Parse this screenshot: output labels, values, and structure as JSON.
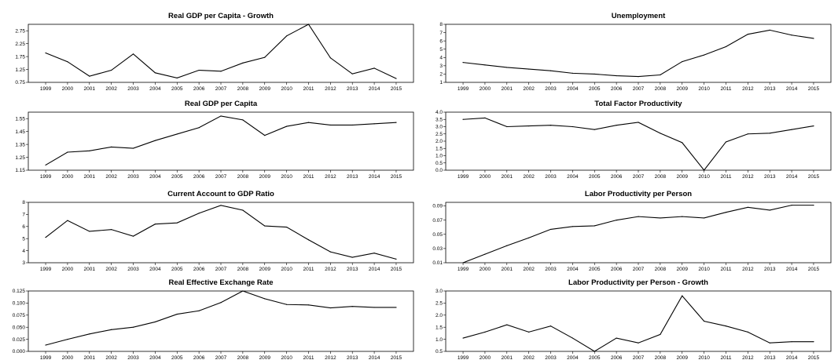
{
  "chart_data": [
    {
      "type": "line",
      "title": "Real GDP per Capita - Growth",
      "categories": [
        "1999",
        "2000",
        "2001",
        "2002",
        "2003",
        "2004",
        "2005",
        "2006",
        "2007",
        "2008",
        "2009",
        "2010",
        "2011",
        "2012",
        "2013",
        "2014",
        "2015"
      ],
      "ylim": [
        0.75,
        3.0
      ],
      "yticks": [
        "0.75",
        "1.25",
        "1.75",
        "2.25",
        "2.75"
      ],
      "series": [
        {
          "values": [
            1.89,
            1.55,
            0.99,
            1.22,
            1.85,
            1.12,
            0.92,
            1.22,
            1.18,
            1.5,
            1.72,
            2.55,
            3.0,
            1.7,
            1.08,
            1.3,
            0.9
          ]
        }
      ]
    },
    {
      "type": "line",
      "title": "Unemployment",
      "categories": [
        "1999",
        "2000",
        "2001",
        "2002",
        "2003",
        "2004",
        "2005",
        "2006",
        "2007",
        "2008",
        "2009",
        "2010",
        "2011",
        "2012",
        "2013",
        "2014",
        "2015"
      ],
      "ylim": [
        1,
        8
      ],
      "yticks": [
        "1",
        "2",
        "3",
        "4",
        "5",
        "6",
        "7",
        "8"
      ],
      "series": [
        {
          "values": [
            3.4,
            3.1,
            2.8,
            2.6,
            2.4,
            2.1,
            2.0,
            1.8,
            1.7,
            1.9,
            3.5,
            4.3,
            5.3,
            6.8,
            7.3,
            6.7,
            6.3
          ]
        }
      ]
    },
    {
      "type": "line",
      "title": "Real GDP per Capita",
      "categories": [
        "1999",
        "2000",
        "2001",
        "2002",
        "2003",
        "2004",
        "2005",
        "2006",
        "2007",
        "2008",
        "2009",
        "2010",
        "2011",
        "2012",
        "2013",
        "2014",
        "2015"
      ],
      "ylim": [
        1.15,
        1.6
      ],
      "yticks": [
        "1.15",
        "1.25",
        "1.35",
        "1.45",
        "1.55"
      ],
      "series": [
        {
          "values": [
            1.19,
            1.29,
            1.3,
            1.33,
            1.32,
            1.38,
            1.43,
            1.48,
            1.57,
            1.54,
            1.42,
            1.49,
            1.52,
            1.5,
            1.5,
            1.51,
            1.52
          ]
        }
      ]
    },
    {
      "type": "line",
      "title": "Total Factor Productivity",
      "categories": [
        "1999",
        "2000",
        "2001",
        "2002",
        "2003",
        "2004",
        "2005",
        "2006",
        "2007",
        "2008",
        "2009",
        "2010",
        "2011",
        "2012",
        "2013",
        "2014",
        "2015"
      ],
      "ylim": [
        0.0,
        4.0
      ],
      "yticks": [
        "0.0",
        "0.5",
        "1.0",
        "1.5",
        "2.0",
        "2.5",
        "3.0",
        "3.5",
        "4.0"
      ],
      "series": [
        {
          "values": [
            3.5,
            3.6,
            3.0,
            3.05,
            3.1,
            3.0,
            2.8,
            3.1,
            3.3,
            2.55,
            1.9,
            0.0,
            1.95,
            2.5,
            2.55,
            2.8,
            3.05
          ]
        }
      ]
    },
    {
      "type": "line",
      "title": "Current Account to GDP Ratio",
      "categories": [
        "1999",
        "2000",
        "2001",
        "2002",
        "2003",
        "2004",
        "2005",
        "2006",
        "2007",
        "2008",
        "2009",
        "2010",
        "2011",
        "2012",
        "2013",
        "2014",
        "2015"
      ],
      "ylim": [
        3,
        8
      ],
      "yticks": [
        "3",
        "4",
        "5",
        "6",
        "7",
        "8"
      ],
      "series": [
        {
          "values": [
            5.1,
            6.5,
            5.6,
            5.75,
            5.2,
            6.2,
            6.3,
            7.1,
            7.75,
            7.35,
            6.05,
            5.95,
            4.9,
            3.9,
            3.45,
            3.8,
            3.3
          ]
        }
      ]
    },
    {
      "type": "line",
      "title": "Labor Productivity per Person",
      "categories": [
        "1999",
        "2000",
        "2001",
        "2002",
        "2003",
        "2004",
        "2005",
        "2006",
        "2007",
        "2008",
        "2009",
        "2010",
        "2011",
        "2012",
        "2013",
        "2014",
        "2015"
      ],
      "ylim": [
        0.01,
        0.095
      ],
      "yticks": [
        "0.01",
        "0.03",
        "0.05",
        "0.07",
        "0.09"
      ],
      "series": [
        {
          "values": [
            0.01,
            0.022,
            0.034,
            0.045,
            0.057,
            0.061,
            0.062,
            0.07,
            0.075,
            0.073,
            0.075,
            0.073,
            0.081,
            0.088,
            0.084,
            0.091,
            0.091
          ]
        }
      ]
    },
    {
      "type": "line",
      "title": "Real Effective Exchange Rate",
      "categories": [
        "1999",
        "2000",
        "2001",
        "2002",
        "2003",
        "2004",
        "2005",
        "2006",
        "2007",
        "2008",
        "2009",
        "2010",
        "2011",
        "2012",
        "2013",
        "2014",
        "2015"
      ],
      "ylim": [
        0.0,
        0.125
      ],
      "yticks": [
        "0.000",
        "0.025",
        "0.050",
        "0.075",
        "0.100",
        "0.125"
      ],
      "series": [
        {
          "values": [
            0.013,
            0.025,
            0.036,
            0.045,
            0.05,
            0.061,
            0.077,
            0.084,
            0.101,
            0.125,
            0.109,
            0.097,
            0.096,
            0.09,
            0.093,
            0.091,
            0.091
          ]
        }
      ]
    },
    {
      "type": "line",
      "title": "Labor Productivity per Person - Growth",
      "categories": [
        "1999",
        "2000",
        "2001",
        "2002",
        "2003",
        "2004",
        "2005",
        "2006",
        "2007",
        "2008",
        "2009",
        "2010",
        "2011",
        "2012",
        "2013",
        "2014",
        "2015"
      ],
      "ylim": [
        0.5,
        3.0
      ],
      "yticks": [
        "0.5",
        "1.0",
        "1.5",
        "2.0",
        "2.5",
        "3.0"
      ],
      "series": [
        {
          "values": [
            1.05,
            1.3,
            1.6,
            1.3,
            1.55,
            1.05,
            0.5,
            1.05,
            0.85,
            1.2,
            2.8,
            1.75,
            1.55,
            1.3,
            0.85,
            0.9,
            0.9
          ]
        }
      ]
    }
  ]
}
